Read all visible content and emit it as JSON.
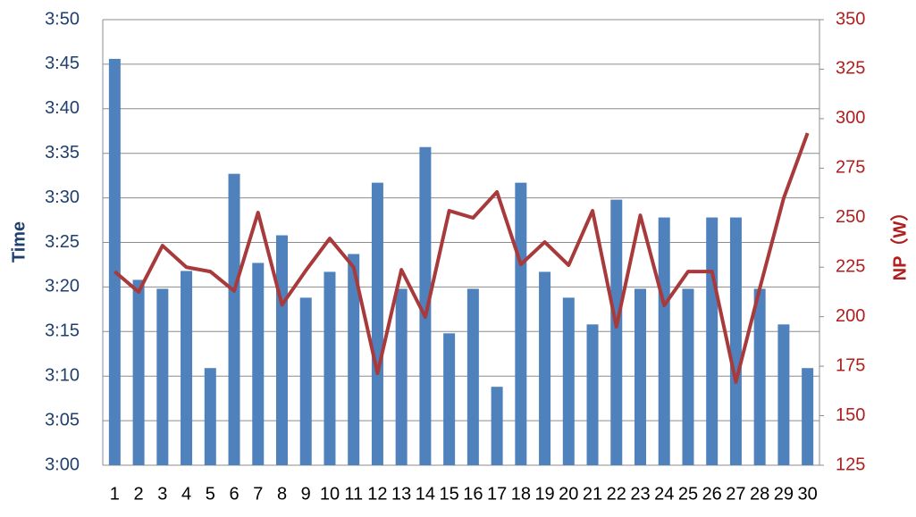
{
  "chart_data": {
    "type": "bar-line",
    "categories": [
      "1",
      "2",
      "3",
      "4",
      "5",
      "6",
      "7",
      "8",
      "9",
      "10",
      "11",
      "12",
      "13",
      "14",
      "15",
      "16",
      "17",
      "18",
      "19",
      "20",
      "21",
      "22",
      "23",
      "24",
      "25",
      "26",
      "27",
      "28",
      "29",
      "30"
    ],
    "y_label": "Time",
    "y2_label": "NP（W）",
    "ylim": [
      180,
      230
    ],
    "yticks": [
      {
        "value": 180,
        "label": "3:00"
      },
      {
        "value": 185,
        "label": "3:05"
      },
      {
        "value": 190,
        "label": "3:10"
      },
      {
        "value": 195,
        "label": "3:15"
      },
      {
        "value": 200,
        "label": "3:20"
      },
      {
        "value": 205,
        "label": "3:25"
      },
      {
        "value": 210,
        "label": "3:30"
      },
      {
        "value": 215,
        "label": "3:35"
      },
      {
        "value": 220,
        "label": "3:40"
      },
      {
        "value": 225,
        "label": "3:45"
      },
      {
        "value": 230,
        "label": "3:50"
      }
    ],
    "y2lim": [
      125,
      350
    ],
    "y2ticks": [
      125,
      150,
      175,
      200,
      225,
      250,
      275,
      300,
      325,
      350
    ],
    "grid": true,
    "series": [
      {
        "type": "bar",
        "color": "#4f81bd",
        "values": [
          225.6,
          200.8,
          199.8,
          201.8,
          190.9,
          212.7,
          202.7,
          205.8,
          198.8,
          201.7,
          203.7,
          211.7,
          199.8,
          215.7,
          194.8,
          199.8,
          188.8,
          211.7,
          201.7,
          198.8,
          195.8,
          209.8,
          199.8,
          207.8,
          199.8,
          207.8,
          207.8,
          199.8,
          195.8,
          190.9
        ]
      },
      {
        "type": "line",
        "axis": "y2",
        "color": "#a83a3c",
        "values": [
          222.8,
          212.5,
          235.9,
          225,
          222.8,
          213,
          252.6,
          206,
          223.3,
          239.5,
          225,
          171.4,
          223.7,
          199.8,
          253.5,
          249.9,
          263,
          226.4,
          237.7,
          226,
          253.5,
          194.9,
          251.2,
          205.7,
          222.8,
          222.8,
          167,
          214.3,
          259.8,
          292.7
        ]
      }
    ]
  }
}
